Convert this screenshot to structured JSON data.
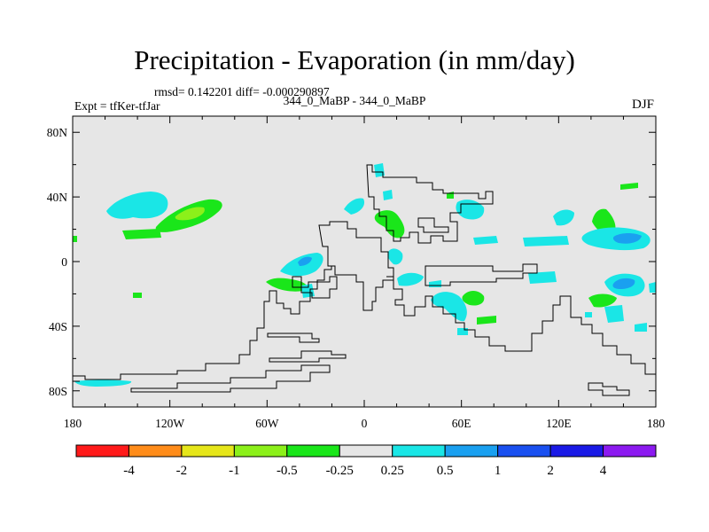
{
  "title": "Precipitation - Evaporation (in mm/day)",
  "stats_line": "rmsd= 0.142201 diff= -0.000290897",
  "experiment_line": "Expt = tfKer-tfJar",
  "runs_line": "344_0_MaBP - 344_0_MaBP",
  "season": "DJF",
  "map": {
    "background_color": "#e6e6e6",
    "lon_range": [
      -180,
      180
    ],
    "lat_range": [
      -90,
      90
    ],
    "lon_tick_labels": [
      "180",
      "120W",
      "60W",
      "0",
      "60E",
      "120E",
      "180"
    ],
    "lat_tick_labels": [
      "80N",
      "40N",
      "0",
      "40S",
      "80S"
    ]
  },
  "colorbar": {
    "bin_colors": [
      "#ff1a1a",
      "#ff8c1a",
      "#e6e61a",
      "#8cf01a",
      "#1ae61a",
      "#e6e6e6",
      "#1ae6e6",
      "#1aa0f0",
      "#1a50f0",
      "#1a1ae6",
      "#8c1af0"
    ],
    "labels": [
      "-4",
      "-2",
      "-1",
      "-0.5",
      "-0.25",
      "0.25",
      "0.5",
      "1",
      "2",
      "4"
    ]
  },
  "chart_data": {
    "type": "heatmap",
    "title": "Precipitation - Evaporation (in mm/day)",
    "xlim": [
      -180,
      180
    ],
    "ylim": [
      -90,
      90
    ],
    "levels": [
      -4,
      -2,
      -1,
      -0.5,
      -0.25,
      0.25,
      0.5,
      1,
      2,
      4
    ],
    "anomaly_regions": [
      {
        "lon": -150,
        "lat": 34,
        "level": "0.25 to 0.5"
      },
      {
        "lon": -125,
        "lat": 34,
        "level": "-0.25 to -0.5"
      },
      {
        "lon": -113,
        "lat": 30,
        "level": "-0.5 to -1"
      },
      {
        "lon": -130,
        "lat": 17,
        "level": "-0.25 to -0.5"
      },
      {
        "lon": -38,
        "lat": 0,
        "level": "0.5 to 1"
      },
      {
        "lon": -45,
        "lat": -15,
        "level": "-0.25 to -0.5"
      },
      {
        "lon": -33,
        "lat": -20,
        "level": "0.25 to 0.5"
      },
      {
        "lon": -5,
        "lat": 37,
        "level": "0.25 to 0.5"
      },
      {
        "lon": 14,
        "lat": 28,
        "level": "-0.25 to -0.5"
      },
      {
        "lon": 20,
        "lat": 0,
        "level": "0.25 to 0.5"
      },
      {
        "lon": 27,
        "lat": -12,
        "level": "0.25 to 0.5"
      },
      {
        "lon": 60,
        "lat": -24,
        "level": "-0.25 to -0.5"
      },
      {
        "lon": 62,
        "lat": -38,
        "level": "0.25 to 0.5"
      },
      {
        "lon": 73,
        "lat": -36,
        "level": "-0.25 to -0.5"
      },
      {
        "lon": 94,
        "lat": 5,
        "level": "0.25 to 0.5"
      },
      {
        "lon": 119,
        "lat": -9,
        "level": "0.25 to 0.5"
      },
      {
        "lon": 130,
        "lat": 25,
        "level": "0.25 to 0.5"
      },
      {
        "lon": 145,
        "lat": 24,
        "level": "-0.25 to -0.5"
      },
      {
        "lon": 156,
        "lat": 12,
        "level": "1 to 2"
      },
      {
        "lon": 151,
        "lat": -15,
        "level": "1 to 2"
      },
      {
        "lon": 143,
        "lat": -25,
        "level": "-0.25 to -0.5"
      },
      {
        "lon": 168,
        "lat": -34,
        "level": "0.25 to 0.5"
      },
      {
        "lon": -165,
        "lat": -75,
        "level": "0.25 to 0.5"
      }
    ]
  }
}
